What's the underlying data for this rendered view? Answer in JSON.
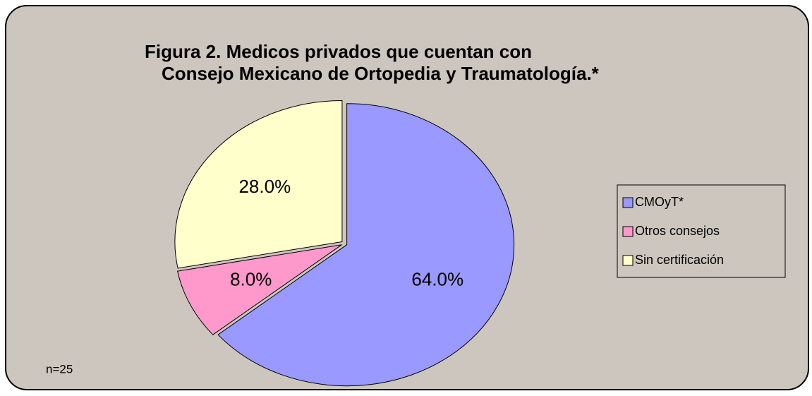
{
  "chart_data": {
    "type": "pie",
    "title": [
      "Figura 2. Medicos privados que cuentan con",
      "Consejo Mexicano de Ortopedia y Traumatología.*"
    ],
    "categories": [
      "CMOyT*",
      "Otros consejos",
      "Sin certificación"
    ],
    "values": [
      64,
      8,
      28
    ],
    "value_labels": [
      "64.0%",
      "8.0%",
      "28.0%"
    ],
    "colors": [
      "#9999ff",
      "#ff99cc",
      "#ffffcc"
    ],
    "legend": "right",
    "annotation": "n=25"
  }
}
